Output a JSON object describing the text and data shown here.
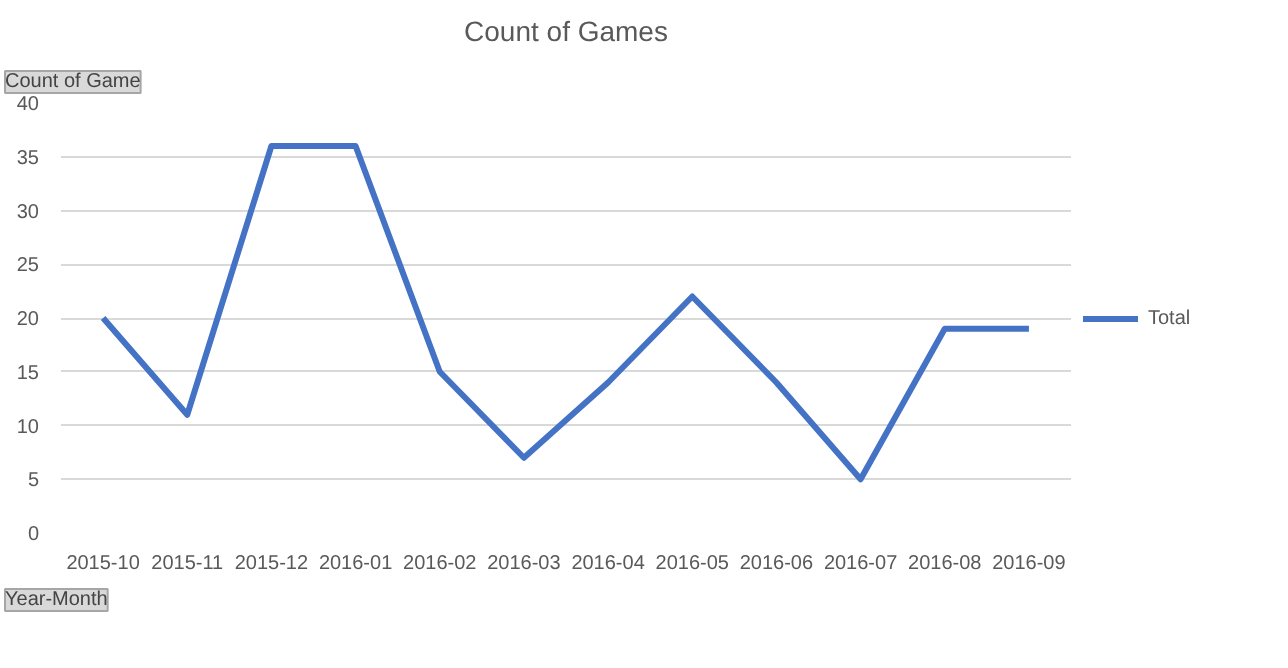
{
  "chart_data": {
    "type": "line",
    "title": "Count of Games",
    "xlabel": "Year-Month",
    "ylabel": "Count of Game",
    "categories": [
      "2015-10",
      "2015-11",
      "2015-12",
      "2016-01",
      "2016-02",
      "2016-03",
      "2016-04",
      "2016-05",
      "2016-06",
      "2016-07",
      "2016-08",
      "2016-09"
    ],
    "series": [
      {
        "name": "Total",
        "color": "#4472c4",
        "values": [
          20,
          11,
          36,
          36,
          15,
          7,
          14,
          22,
          14,
          5,
          19,
          19
        ]
      }
    ],
    "ylim": [
      0,
      40
    ],
    "yticks": [
      0,
      5,
      10,
      15,
      20,
      25,
      30,
      35,
      40
    ],
    "grid": "y",
    "legend": "right",
    "marker": "none",
    "line_style": "solid"
  }
}
